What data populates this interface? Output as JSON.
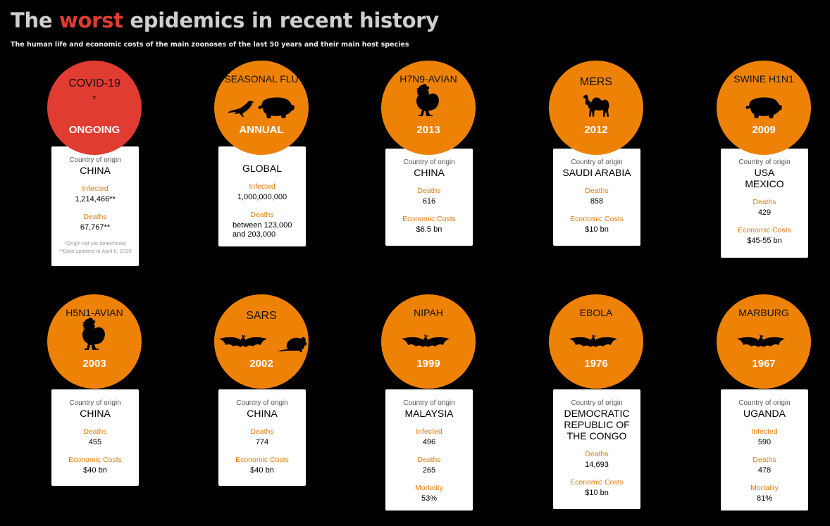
{
  "header": {
    "title_prefix": "The ",
    "title_highlight": "worst",
    "title_suffix": " epidemics in recent history",
    "subtitle": "The human life and economic costs of the main zoonoses of the last 50 years and their main host species"
  },
  "colors": {
    "orange": "#ee8207",
    "red": "#e03c31",
    "label": "#e37c0a"
  },
  "epidemics": [
    {
      "name": "COVID-19",
      "star": "*",
      "year": "ONGOING",
      "icons": [],
      "origin_label": "Country of origin",
      "origin": "CHINA",
      "stats": [
        {
          "label": "Infected",
          "value": "1,214,466**"
        },
        {
          "label": "Deaths",
          "value": "67,767**"
        }
      ],
      "notes": [
        "*Origin not yet determined",
        "**Data updated to April 6, 2020"
      ]
    },
    {
      "name": "SEASONAL FLU",
      "year": "ANNUAL",
      "icons": [
        "pigeon-icon",
        "pig-icon"
      ],
      "origin": "GLOBAL",
      "stats": [
        {
          "label": "Infected",
          "value": "1,000,000,000"
        },
        {
          "label": "Deaths",
          "value": "between 123,000 and 203,000"
        }
      ]
    },
    {
      "name": "H7N9-AVIAN",
      "year": "2013",
      "icons": [
        "rooster-icon"
      ],
      "origin_label": "Country of origin",
      "origin": "CHINA",
      "stats": [
        {
          "label": "Deaths",
          "value": "616"
        },
        {
          "label": "Economic Costs",
          "value": "$6.5 bn"
        }
      ]
    },
    {
      "name": "MERS",
      "year": "2012",
      "icons": [
        "camel-icon"
      ],
      "origin_label": "Country of origin",
      "origin": "SAUDI ARABIA",
      "stats": [
        {
          "label": "Deaths",
          "value": "858"
        },
        {
          "label": "Economic Costs",
          "value": "$10 bn"
        }
      ]
    },
    {
      "name": "SWINE H1N1",
      "year": "2009",
      "icons": [
        "pig-icon"
      ],
      "origin_label": "Country of origin",
      "origin": "USA\nMEXICO",
      "stats": [
        {
          "label": "Deaths",
          "value": "429"
        },
        {
          "label": "Economic Costs",
          "value": "$45-55 bn"
        }
      ]
    },
    {
      "name": "H5N1-AVIAN",
      "year": "2003",
      "icons": [
        "rooster-icon"
      ],
      "origin_label": "Country of origin",
      "origin": "CHINA",
      "stats": [
        {
          "label": "Deaths",
          "value": "455"
        },
        {
          "label": "Economic Costs",
          "value": "$40 bn"
        }
      ]
    },
    {
      "name": "SARS",
      "year": "2002",
      "icons": [
        "bat-icon",
        "rat-icon"
      ],
      "origin_label": "Country of origin",
      "origin": "CHINA",
      "stats": [
        {
          "label": "Deaths",
          "value": "774"
        },
        {
          "label": "Economic Costs",
          "value": "$40 bn"
        }
      ]
    },
    {
      "name": "NIPAH",
      "year": "1999",
      "icons": [
        "bat-icon"
      ],
      "origin_label": "Country of origin",
      "origin": "MALAYSIA",
      "stats": [
        {
          "label": "Infected",
          "value": "496"
        },
        {
          "label": "Deaths",
          "value": "265"
        },
        {
          "label": "Mortality",
          "value": "53%"
        }
      ]
    },
    {
      "name": "EBOLA",
      "year": "1976",
      "icons": [
        "bat-icon"
      ],
      "origin_label": "Country of origin",
      "origin": "DEMOCRATIC REPUBLIC OF THE CONGO",
      "stats": [
        {
          "label": "Deaths",
          "value": "14,693"
        },
        {
          "label": "Economic Costs",
          "value": "$10 bn"
        }
      ]
    },
    {
      "name": "MARBURG",
      "year": "1967",
      "icons": [
        "bat-icon"
      ],
      "origin_label": "Country of origin",
      "origin": "UGANDA",
      "stats": [
        {
          "label": "Infected",
          "value": "590"
        },
        {
          "label": "Deaths",
          "value": "478"
        },
        {
          "label": "Mortality",
          "value": "81%"
        }
      ]
    }
  ]
}
